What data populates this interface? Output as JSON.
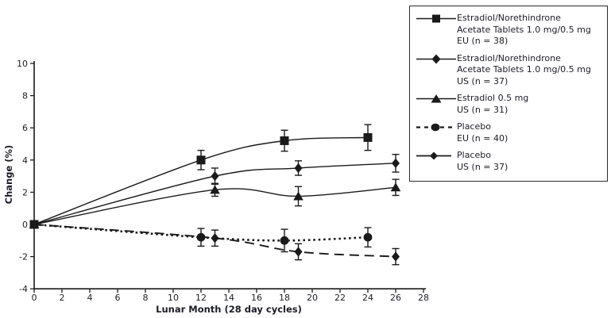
{
  "figure": {
    "background": "#ffffff",
    "line_color": "#1a1a1a",
    "text_color": "#1c1c28"
  },
  "legend": {
    "entries": [
      {
        "marker": "square",
        "line": "solid",
        "lines": [
          "Estradiol/Norethindrone",
          "Acetate Tablets 1.0 mg/0.5 mg",
          "EU (n = 38)"
        ]
      },
      {
        "marker": "diamond",
        "line": "solid",
        "lines": [
          "Estradiol/Norethindrone",
          "Acetate Tablets 1.0 mg/0.5 mg",
          "US (n = 37)"
        ]
      },
      {
        "marker": "triangle",
        "line": "solid",
        "lines": [
          "Estradiol 0.5 mg",
          "US (n = 31)"
        ]
      },
      {
        "marker": "circle",
        "line": "dashed",
        "lines": [
          "Placebo",
          "EU (n = 40)"
        ]
      },
      {
        "marker": "diamond",
        "line": "solid",
        "lines": [
          "Placebo",
          "US (n = 37)"
        ]
      }
    ]
  },
  "chart_data": {
    "type": "line",
    "title": "",
    "xlabel": "Lunar Month (28 day cycles)",
    "ylabel": "Change (%)",
    "xlim": [
      0,
      28
    ],
    "ylim": [
      -4,
      10
    ],
    "xticks": [
      0,
      2,
      4,
      6,
      8,
      10,
      12,
      14,
      16,
      18,
      20,
      22,
      24,
      26,
      28
    ],
    "yticks": [
      10,
      8,
      6,
      4,
      2,
      0,
      -2,
      -4
    ],
    "grid": false,
    "legend_position": "right",
    "series": [
      {
        "name": "Estradiol/Norethindrone Acetate Tablets 1.0 mg/0.5 mg EU (n = 38)",
        "marker": "square",
        "line_style": "solid",
        "x": [
          0,
          12,
          18,
          24
        ],
        "y": [
          0,
          4.0,
          5.2,
          5.4
        ],
        "yerr": [
          0,
          0.6,
          0.65,
          0.8
        ]
      },
      {
        "name": "Estradiol/Norethindrone Acetate Tablets 1.0 mg/0.5 mg US (n = 37)",
        "marker": "diamond",
        "line_style": "solid",
        "x": [
          0,
          13,
          19,
          26
        ],
        "y": [
          0,
          3.0,
          3.5,
          3.8
        ],
        "yerr": [
          0,
          0.5,
          0.45,
          0.55
        ]
      },
      {
        "name": "Estradiol 0.5 mg US (n = 31)",
        "marker": "triangle",
        "line_style": "solid",
        "x": [
          0,
          13,
          19,
          26
        ],
        "y": [
          0,
          2.15,
          1.75,
          2.3
        ],
        "yerr": [
          0,
          0.4,
          0.6,
          0.5
        ]
      },
      {
        "name": "Placebo EU (n = 40)",
        "marker": "circle",
        "line_style": "dotted",
        "x": [
          0,
          12,
          18,
          24
        ],
        "y": [
          0,
          -0.8,
          -1.0,
          -0.8
        ],
        "yerr": [
          0,
          0.55,
          0.7,
          0.6
        ]
      },
      {
        "name": "Placebo US (n = 37)",
        "marker": "diamond",
        "line_style": "longdash",
        "x": [
          0,
          13,
          19,
          26
        ],
        "y": [
          0,
          -0.85,
          -1.7,
          -2.0
        ],
        "yerr": [
          0,
          0.5,
          0.5,
          0.5
        ]
      }
    ]
  }
}
